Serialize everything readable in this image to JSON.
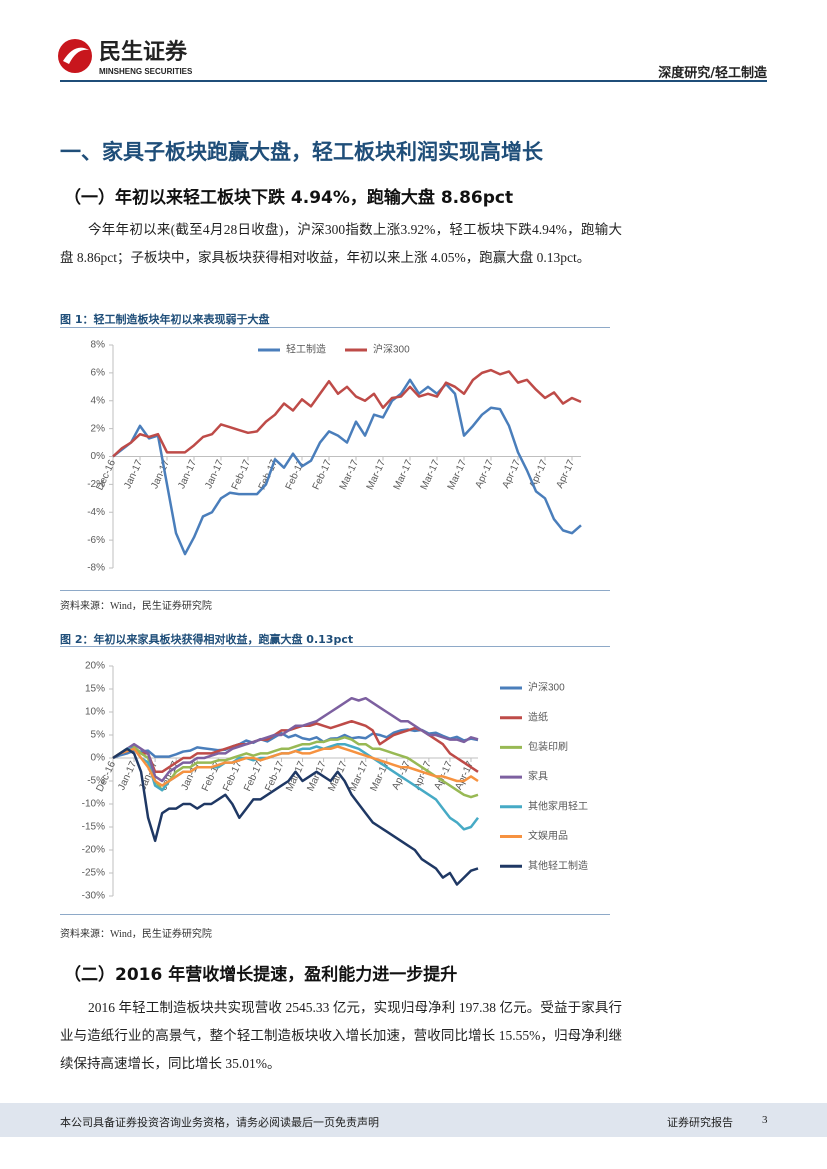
{
  "header": {
    "logo_cn": "民生证券",
    "logo_en": "MINSHENG SECURITIES",
    "category": "深度研究/轻工制造"
  },
  "title": "一、家具子板块跑赢大盘，轻工板块利润实现高增长",
  "subsections": [
    {
      "title": "（一）年初以来轻工板块下跌 4.94%，跑输大盘 8.86pct",
      "paragraph": "今年年初以来(截至4月28日收盘)，沪深300指数上涨3.92%，轻工板块下跌4.94%，跑输大盘 8.86pct；子板块中，家具板块获得相对收益，年初以来上涨 4.05%，跑赢大盘 0.13pct。"
    },
    {
      "title": "（二）2016 年营收增长提速，盈利能力进一步提升",
      "paragraph": "2016 年轻工制造板块共实现营收 2545.33 亿元，实现归母净利 197.38 亿元。受益于家具行业与造纸行业的高景气，整个轻工制造板块收入增长加速，营收同比增长 15.55%，归母净利继续保持高速增长，同比增长 35.01%。"
    }
  ],
  "figures": [
    {
      "caption": "图 1：轻工制造板块年初以来表现弱于大盘",
      "source": "资料来源：Wind，民生证券研究院"
    },
    {
      "caption": "图 2：年初以来家具板块获得相对收益，跑赢大盘 0.13pct",
      "source": "资料来源：Wind，民生证券研究院"
    }
  ],
  "chart_data": [
    {
      "type": "line",
      "legend": "top",
      "categories": [
        "Dec-16",
        null,
        null,
        "Jan-17",
        null,
        null,
        "Jan-17",
        null,
        null,
        "Jan-17",
        null,
        null,
        "Jan-17",
        null,
        null,
        "Feb-17",
        null,
        null,
        "Feb-17",
        null,
        null,
        "Feb-17",
        null,
        null,
        "Feb-17",
        null,
        null,
        "Mar-17",
        null,
        null,
        "Mar-17",
        null,
        null,
        "Mar-17",
        null,
        null,
        "Mar-17",
        null,
        null,
        "Mar-17",
        null,
        null,
        "Apr-17",
        null,
        null,
        "Apr-17",
        null,
        null,
        "Apr-17",
        null,
        null,
        "Apr-17",
        null
      ],
      "ylim": [
        -8,
        8
      ],
      "yticks": [
        {
          "value": -8,
          "label": "-8%"
        },
        {
          "value": -6,
          "label": "-6%"
        },
        {
          "value": -4,
          "label": "-4%"
        },
        {
          "value": -2,
          "label": "-2%"
        },
        {
          "value": 0,
          "label": "0%"
        },
        {
          "value": 2,
          "label": "2%"
        },
        {
          "value": 4,
          "label": "4%"
        },
        {
          "value": 6,
          "label": "6%"
        },
        {
          "value": 8,
          "label": "8%"
        }
      ],
      "grid": false,
      "series": [
        {
          "name": "轻工制造",
          "color": "#4a7ebb",
          "values": [
            0,
            0.5,
            1.0,
            2.2,
            1.3,
            1.5,
            -2.0,
            -5.5,
            -7.0,
            -5.8,
            -4.3,
            -4.0,
            -3.0,
            -2.6,
            -2.7,
            -2.7,
            -2.7,
            -2.0,
            -0.2,
            -0.8,
            0.2,
            -0.7,
            -0.3,
            1.0,
            1.8,
            1.5,
            1.0,
            2.5,
            1.5,
            3.0,
            2.8,
            4.0,
            4.5,
            5.5,
            4.5,
            5.0,
            4.5,
            5.2,
            4.5,
            1.5,
            2.2,
            3.0,
            3.5,
            3.4,
            2.2,
            0.3,
            -1.0,
            -2.5,
            -3.0,
            -4.5,
            -5.3,
            -5.5,
            -4.94
          ]
        },
        {
          "name": "沪深300",
          "color": "#be4b48",
          "values": [
            0,
            0.6,
            1.0,
            1.6,
            1.4,
            1.6,
            0.3,
            0.3,
            0.3,
            0.8,
            1.4,
            1.6,
            2.3,
            2.1,
            1.9,
            1.7,
            1.8,
            2.5,
            3.0,
            3.8,
            3.3,
            4.1,
            3.6,
            4.5,
            5.4,
            4.5,
            5.0,
            4.3,
            4.0,
            4.5,
            3.5,
            4.2,
            4.3,
            5.0,
            4.3,
            4.5,
            4.3,
            5.3,
            5.0,
            4.5,
            5.5,
            6.0,
            6.2,
            5.9,
            6.1,
            5.3,
            5.5,
            4.8,
            4.2,
            4.6,
            3.8,
            4.2,
            3.92
          ]
        }
      ]
    },
    {
      "type": "line",
      "legend": "right",
      "categories": [
        "Dec-16",
        null,
        null,
        "Jan-17",
        null,
        null,
        "Jan-17",
        null,
        null,
        "Jan-17",
        null,
        null,
        "Jan-17",
        null,
        null,
        "Feb-17",
        null,
        null,
        "Feb-17",
        null,
        null,
        "Feb-17",
        null,
        null,
        "Feb-17",
        null,
        null,
        "Mar-17",
        null,
        null,
        "Mar-17",
        null,
        null,
        "Mar-17",
        null,
        null,
        "Mar-17",
        null,
        null,
        "Mar-17",
        null,
        null,
        "Apr-17",
        null,
        null,
        "Apr-17",
        null,
        null,
        "Apr-17",
        null,
        null,
        "Apr-17",
        null
      ],
      "ylim": [
        -30,
        20
      ],
      "yticks": [
        {
          "value": -30,
          "label": "-30%"
        },
        {
          "value": -25,
          "label": "-25%"
        },
        {
          "value": -20,
          "label": "-20%"
        },
        {
          "value": -15,
          "label": "-15%"
        },
        {
          "value": -10,
          "label": "-10%"
        },
        {
          "value": -5,
          "label": "-5%"
        },
        {
          "value": 0,
          "label": "0%"
        },
        {
          "value": 5,
          "label": "5%"
        },
        {
          "value": 10,
          "label": "10%"
        },
        {
          "value": 15,
          "label": "15%"
        },
        {
          "value": 20,
          "label": "20%"
        }
      ],
      "grid": false,
      "series": [
        {
          "name": "沪深300",
          "color": "#4a7ebb",
          "values": [
            0,
            0.6,
            1.0,
            1.6,
            1.4,
            1.6,
            0.3,
            0.3,
            0.3,
            0.8,
            1.4,
            1.6,
            2.3,
            2.1,
            1.9,
            1.7,
            1.8,
            2.5,
            3.0,
            3.8,
            3.3,
            4.1,
            3.6,
            4.5,
            5.4,
            4.5,
            5.0,
            4.3,
            4.0,
            4.5,
            3.5,
            4.2,
            4.3,
            5.0,
            4.3,
            4.5,
            4.3,
            5.3,
            5.0,
            4.5,
            5.5,
            6.0,
            6.2,
            5.9,
            6.1,
            5.3,
            5.5,
            4.8,
            4.2,
            4.6,
            3.8,
            4.2,
            3.92
          ]
        },
        {
          "name": "造纸",
          "color": "#be4b48",
          "values": [
            0,
            1,
            1.5,
            2,
            1,
            1,
            -3,
            -3,
            -2,
            -1,
            0,
            0,
            1,
            1,
            1,
            1.5,
            2,
            2.5,
            3,
            3,
            3.5,
            4,
            4,
            5,
            6,
            6,
            6.5,
            7,
            7,
            7.5,
            7,
            6.5,
            7,
            7.5,
            8,
            7.5,
            7,
            6,
            3,
            4,
            5,
            5.5,
            6,
            6.5,
            6,
            5,
            4,
            3,
            1,
            0,
            -1,
            -2,
            -3
          ]
        },
        {
          "name": "包装印刷",
          "color": "#98b954",
          "values": [
            0,
            1,
            2,
            2.5,
            1,
            0,
            -5,
            -7,
            -5,
            -3,
            -2,
            -2,
            -1,
            -1,
            -1,
            -0.5,
            -0.5,
            0,
            0.5,
            1,
            0.5,
            1,
            1,
            1.5,
            2,
            2,
            2.5,
            3,
            3,
            3.5,
            3.5,
            4,
            4,
            4.5,
            4,
            3,
            3,
            2,
            2,
            1.5,
            1,
            0.5,
            0,
            -1,
            -2,
            -3,
            -4,
            -5,
            -6,
            -7,
            -8,
            -8.5,
            -8
          ]
        },
        {
          "name": "家具",
          "color": "#7d60a0",
          "values": [
            0,
            1,
            2,
            3,
            2,
            1,
            -4,
            -5,
            -3,
            -2,
            -1,
            -1,
            0,
            0,
            0.5,
            1,
            1,
            2,
            2.5,
            3,
            3.5,
            4,
            4.5,
            5,
            5,
            6,
            7,
            7,
            7.5,
            8,
            9,
            10,
            11,
            12,
            13,
            12.5,
            13,
            12,
            11,
            10,
            9,
            8,
            8,
            7,
            6,
            5,
            5,
            4.5,
            4,
            4,
            3.5,
            4.5,
            4.05
          ]
        },
        {
          "name": "其他家用轻工",
          "color": "#46aac5",
          "values": [
            0,
            1,
            2,
            2,
            0,
            -1,
            -6,
            -7,
            -5,
            -4,
            -3,
            -3,
            -2,
            -2,
            -2,
            -2,
            -1,
            -1,
            0,
            0,
            -0.5,
            0,
            0,
            0.5,
            1,
            1,
            1.5,
            2,
            2,
            2.5,
            2,
            2.5,
            3,
            3,
            2.5,
            2,
            1,
            0,
            -1,
            -2,
            -3,
            -4,
            -5,
            -6,
            -7,
            -8,
            -9,
            -11,
            -13,
            -14,
            -15.5,
            -15,
            -13
          ]
        },
        {
          "name": "文娱用品",
          "color": "#f69240",
          "values": [
            0,
            1,
            1.5,
            2,
            0,
            -2,
            -5,
            -6,
            -5,
            -4,
            -3,
            -3,
            -2,
            -2,
            -2,
            -1.5,
            -1,
            -1,
            -0.5,
            0,
            0,
            -0.5,
            0,
            0.5,
            1,
            1,
            1.5,
            1,
            1,
            1.5,
            2,
            2,
            2.5,
            2,
            1.5,
            1,
            0.5,
            0,
            -0.5,
            -1,
            -1.5,
            -2,
            -2,
            -2.5,
            -3,
            -3.5,
            -4,
            -4,
            -4.5,
            -5,
            -5,
            -4,
            -5
          ]
        },
        {
          "name": "其他轻工制造",
          "color": "#1f3864",
          "values": [
            0,
            1,
            2,
            1,
            -3,
            -13,
            -18,
            -12,
            -11,
            -11,
            -10,
            -10,
            -11,
            -10,
            -10,
            -9,
            -8,
            -10,
            -13,
            -11,
            -9,
            -9,
            -8,
            -7,
            -6,
            -5,
            -3,
            -5,
            -4,
            -3,
            -4,
            -5,
            -3,
            -5,
            -8,
            -10,
            -12,
            -14,
            -15,
            -16,
            -17,
            -18,
            -19,
            -20,
            -22,
            -23,
            -24,
            -26,
            -25,
            -27.5,
            -26,
            -24.5,
            -24
          ]
        }
      ]
    }
  ],
  "footer": {
    "disclaimer": "本公司具备证券投资咨询业务资格，请务必阅读最后一页免责声明",
    "label": "证券研究报告",
    "page": "3"
  }
}
